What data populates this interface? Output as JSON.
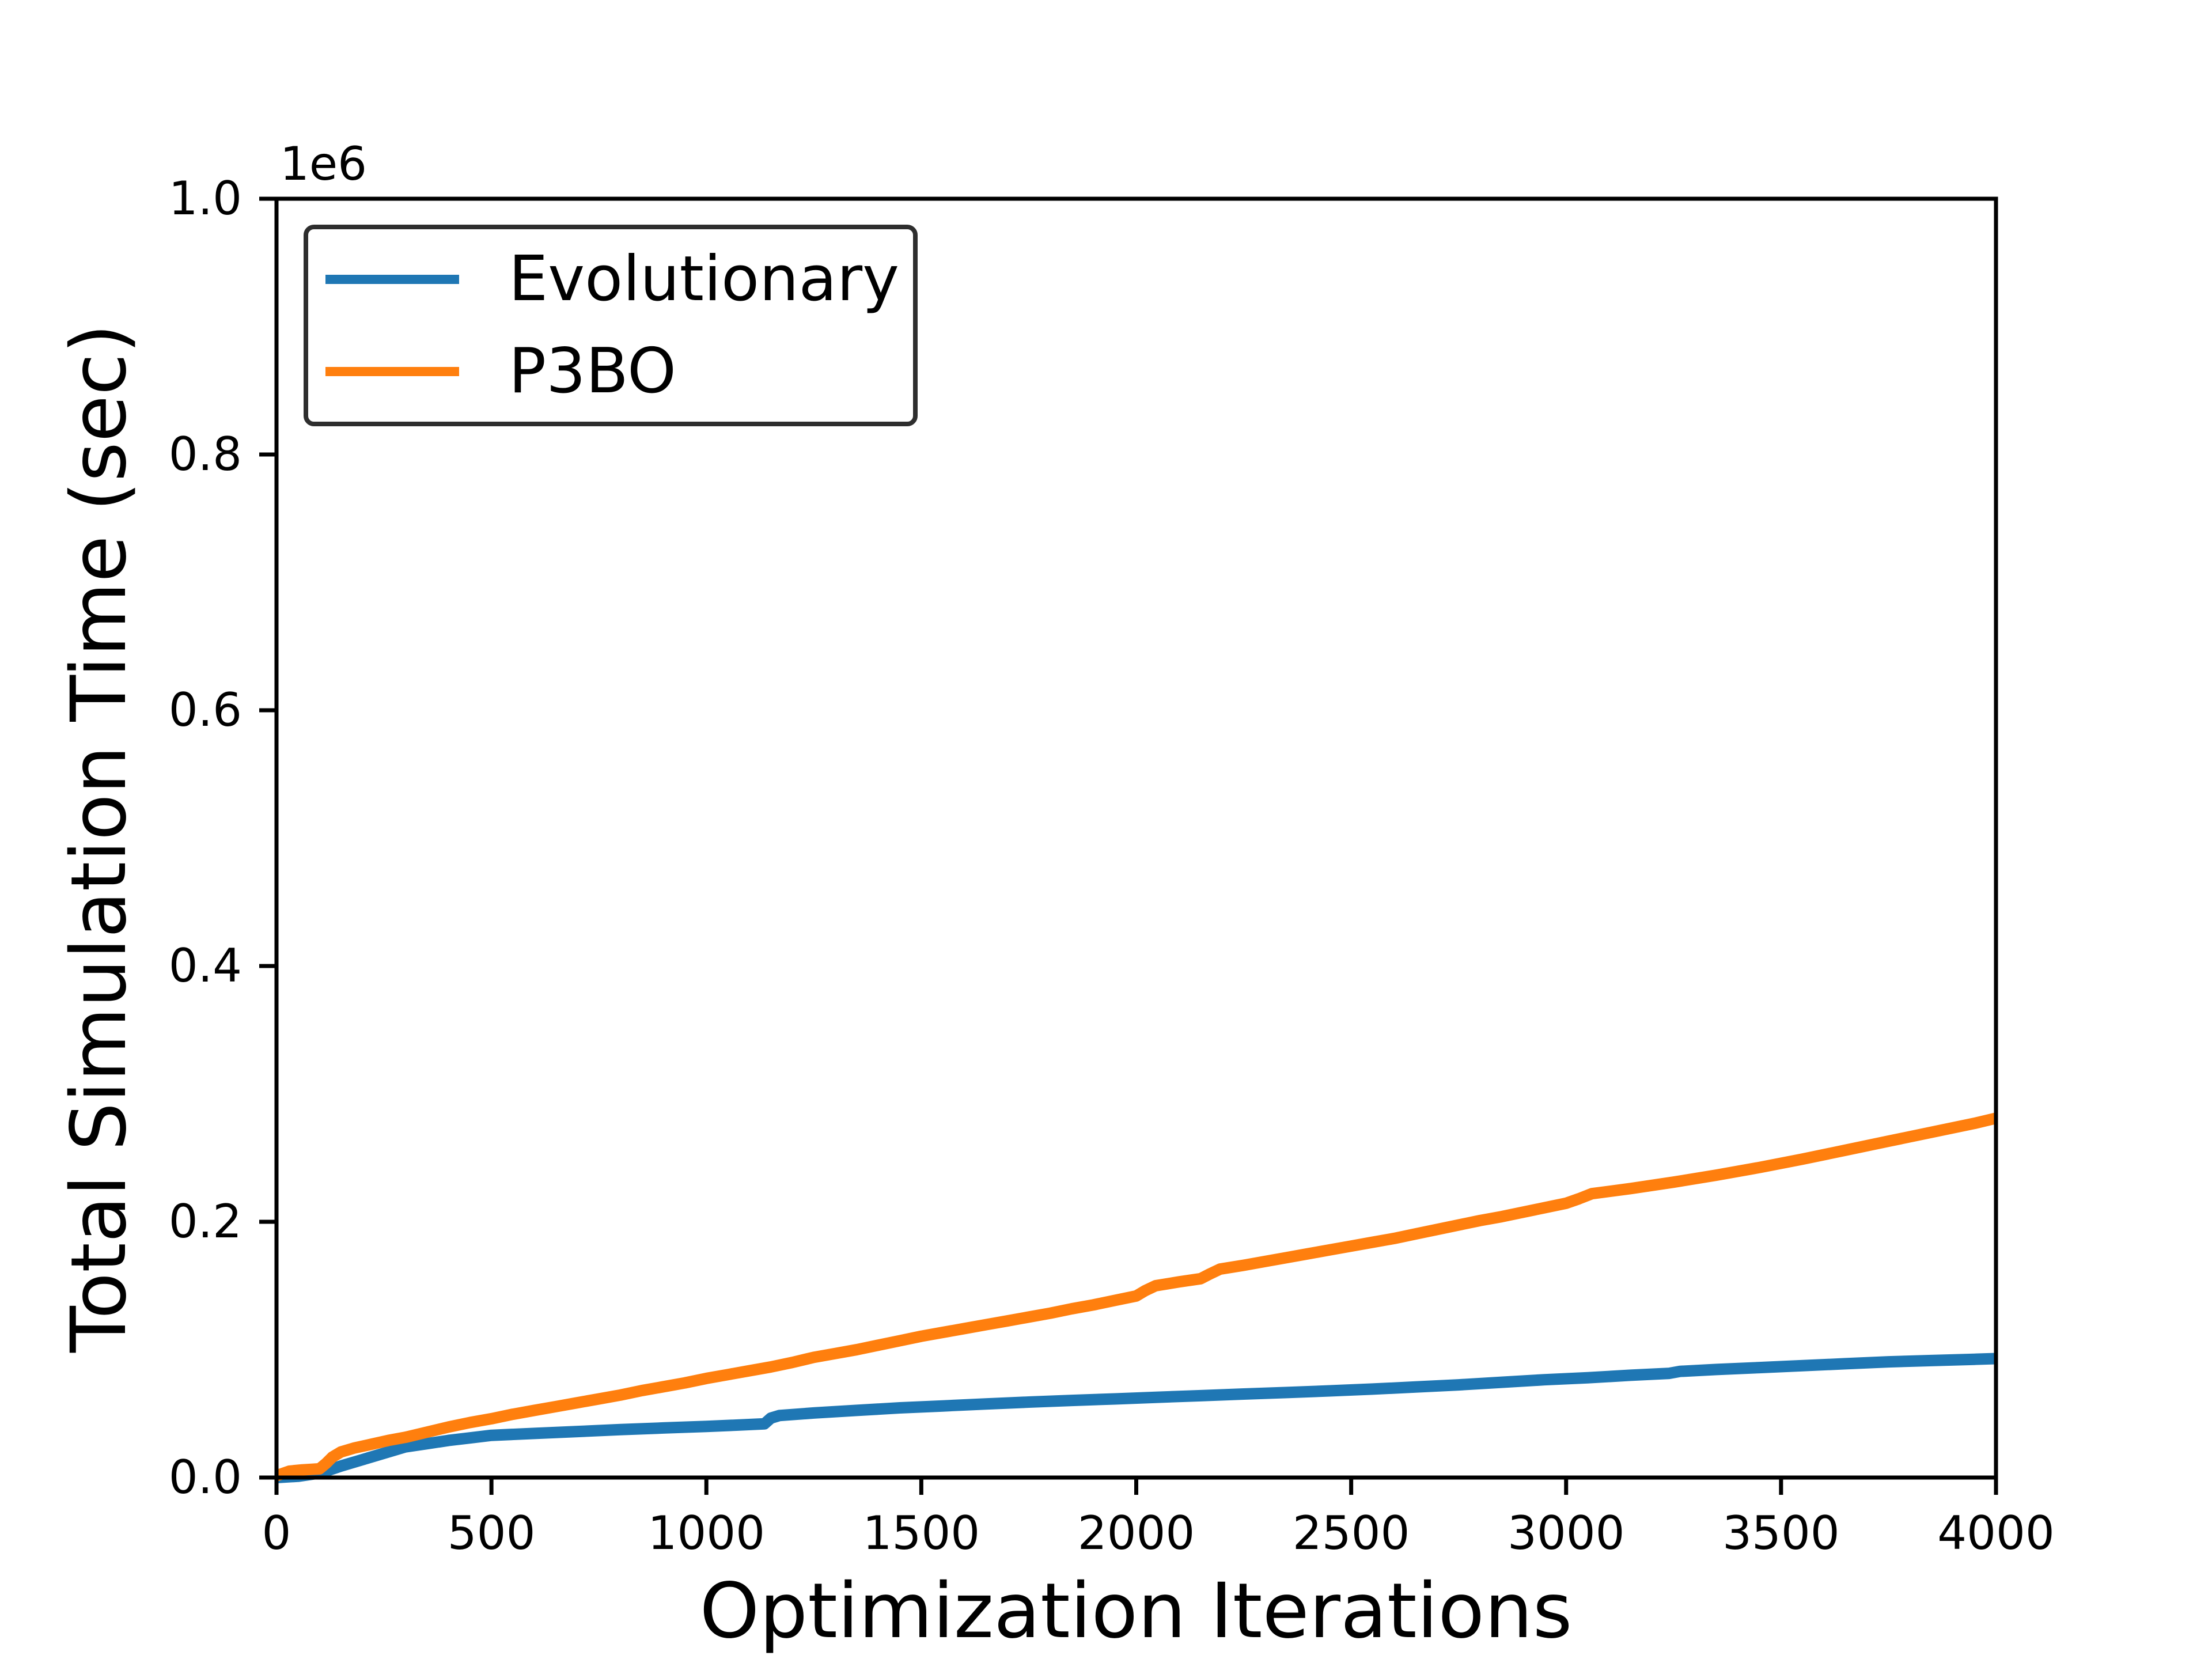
{
  "chart_data": {
    "type": "line",
    "title": "",
    "xlabel": "Optimization Iterations",
    "ylabel": "Total Simulation Time (sec)",
    "y_axis_offset_label": "1e6",
    "xlim": [
      0,
      4000
    ],
    "ylim": [
      0,
      1000000
    ],
    "grid": false,
    "background_color": "#ffffff",
    "axis_color": "#000000",
    "x_ticks": {
      "values": [
        0,
        500,
        1000,
        1500,
        2000,
        2500,
        3000,
        3500,
        4000
      ],
      "labels": [
        "0",
        "500",
        "1000",
        "1500",
        "2000",
        "2500",
        "3000",
        "3500",
        "4000"
      ]
    },
    "y_ticks": {
      "values": [
        0,
        200000,
        400000,
        600000,
        800000,
        1000000
      ],
      "labels": [
        "0.0",
        "0.2",
        "0.4",
        "0.6",
        "0.8",
        "1.0"
      ]
    },
    "legend": {
      "position": "upper-left",
      "border_color": "#2e2e2e"
    },
    "series": [
      {
        "name": "Evolutionary",
        "color": "#1f77b4",
        "points": [
          [
            0,
            0
          ],
          [
            50,
            1000
          ],
          [
            100,
            3500
          ],
          [
            115,
            5000
          ],
          [
            150,
            9000
          ],
          [
            200,
            14000
          ],
          [
            250,
            19000
          ],
          [
            300,
            24000
          ],
          [
            350,
            26500
          ],
          [
            400,
            29000
          ],
          [
            450,
            31000
          ],
          [
            500,
            33000
          ],
          [
            600,
            34500
          ],
          [
            700,
            36000
          ],
          [
            800,
            37500
          ],
          [
            900,
            38800
          ],
          [
            1000,
            40000
          ],
          [
            1070,
            41000
          ],
          [
            1135,
            42000
          ],
          [
            1150,
            46500
          ],
          [
            1170,
            48500
          ],
          [
            1250,
            50500
          ],
          [
            1350,
            52500
          ],
          [
            1450,
            54500
          ],
          [
            1550,
            56000
          ],
          [
            1650,
            57500
          ],
          [
            1750,
            59000
          ],
          [
            1850,
            60300
          ],
          [
            1950,
            61500
          ],
          [
            2050,
            62800
          ],
          [
            2150,
            64000
          ],
          [
            2250,
            65300
          ],
          [
            2350,
            66500
          ],
          [
            2450,
            67800
          ],
          [
            2550,
            69200
          ],
          [
            2650,
            70800
          ],
          [
            2750,
            72500
          ],
          [
            2850,
            74500
          ],
          [
            2950,
            76500
          ],
          [
            3050,
            78000
          ],
          [
            3150,
            80000
          ],
          [
            3240,
            81500
          ],
          [
            3265,
            83000
          ],
          [
            3350,
            84500
          ],
          [
            3450,
            86000
          ],
          [
            3550,
            87500
          ],
          [
            3650,
            89000
          ],
          [
            3750,
            90500
          ],
          [
            3850,
            91500
          ],
          [
            3950,
            92500
          ],
          [
            4000,
            93000
          ]
        ]
      },
      {
        "name": "P3BO",
        "color": "#ff7f0e",
        "points": [
          [
            0,
            1500
          ],
          [
            30,
            5000
          ],
          [
            60,
            6000
          ],
          [
            100,
            6800
          ],
          [
            115,
            11000
          ],
          [
            130,
            16000
          ],
          [
            150,
            20000
          ],
          [
            180,
            23000
          ],
          [
            220,
            26000
          ],
          [
            260,
            29000
          ],
          [
            300,
            31500
          ],
          [
            350,
            35500
          ],
          [
            400,
            39500
          ],
          [
            450,
            43000
          ],
          [
            500,
            46000
          ],
          [
            550,
            49500
          ],
          [
            600,
            52500
          ],
          [
            650,
            55500
          ],
          [
            700,
            58500
          ],
          [
            750,
            61500
          ],
          [
            800,
            64500
          ],
          [
            850,
            68000
          ],
          [
            900,
            71000
          ],
          [
            950,
            74000
          ],
          [
            1000,
            77500
          ],
          [
            1050,
            80500
          ],
          [
            1100,
            83500
          ],
          [
            1150,
            86500
          ],
          [
            1200,
            90000
          ],
          [
            1250,
            94000
          ],
          [
            1300,
            97000
          ],
          [
            1350,
            100000
          ],
          [
            1400,
            103500
          ],
          [
            1450,
            107000
          ],
          [
            1500,
            110500
          ],
          [
            1550,
            113500
          ],
          [
            1600,
            116500
          ],
          [
            1650,
            119500
          ],
          [
            1700,
            122500
          ],
          [
            1750,
            125500
          ],
          [
            1800,
            128500
          ],
          [
            1850,
            132000
          ],
          [
            1900,
            135000
          ],
          [
            1950,
            138500
          ],
          [
            2000,
            142000
          ],
          [
            2020,
            146000
          ],
          [
            2045,
            150000
          ],
          [
            2100,
            153000
          ],
          [
            2150,
            155500
          ],
          [
            2170,
            159000
          ],
          [
            2195,
            163000
          ],
          [
            2250,
            166000
          ],
          [
            2300,
            169000
          ],
          [
            2350,
            172000
          ],
          [
            2400,
            175000
          ],
          [
            2450,
            178000
          ],
          [
            2500,
            181000
          ],
          [
            2550,
            184000
          ],
          [
            2600,
            187000
          ],
          [
            2650,
            190500
          ],
          [
            2700,
            194000
          ],
          [
            2750,
            197500
          ],
          [
            2800,
            201000
          ],
          [
            2850,
            204000
          ],
          [
            2900,
            207500
          ],
          [
            2950,
            211000
          ],
          [
            3000,
            214500
          ],
          [
            3030,
            218000
          ],
          [
            3060,
            222000
          ],
          [
            3150,
            226000
          ],
          [
            3250,
            231000
          ],
          [
            3350,
            236500
          ],
          [
            3450,
            242500
          ],
          [
            3550,
            249000
          ],
          [
            3650,
            256000
          ],
          [
            3750,
            263000
          ],
          [
            3850,
            270000
          ],
          [
            3950,
            277000
          ],
          [
            4000,
            281000
          ]
        ]
      }
    ]
  }
}
